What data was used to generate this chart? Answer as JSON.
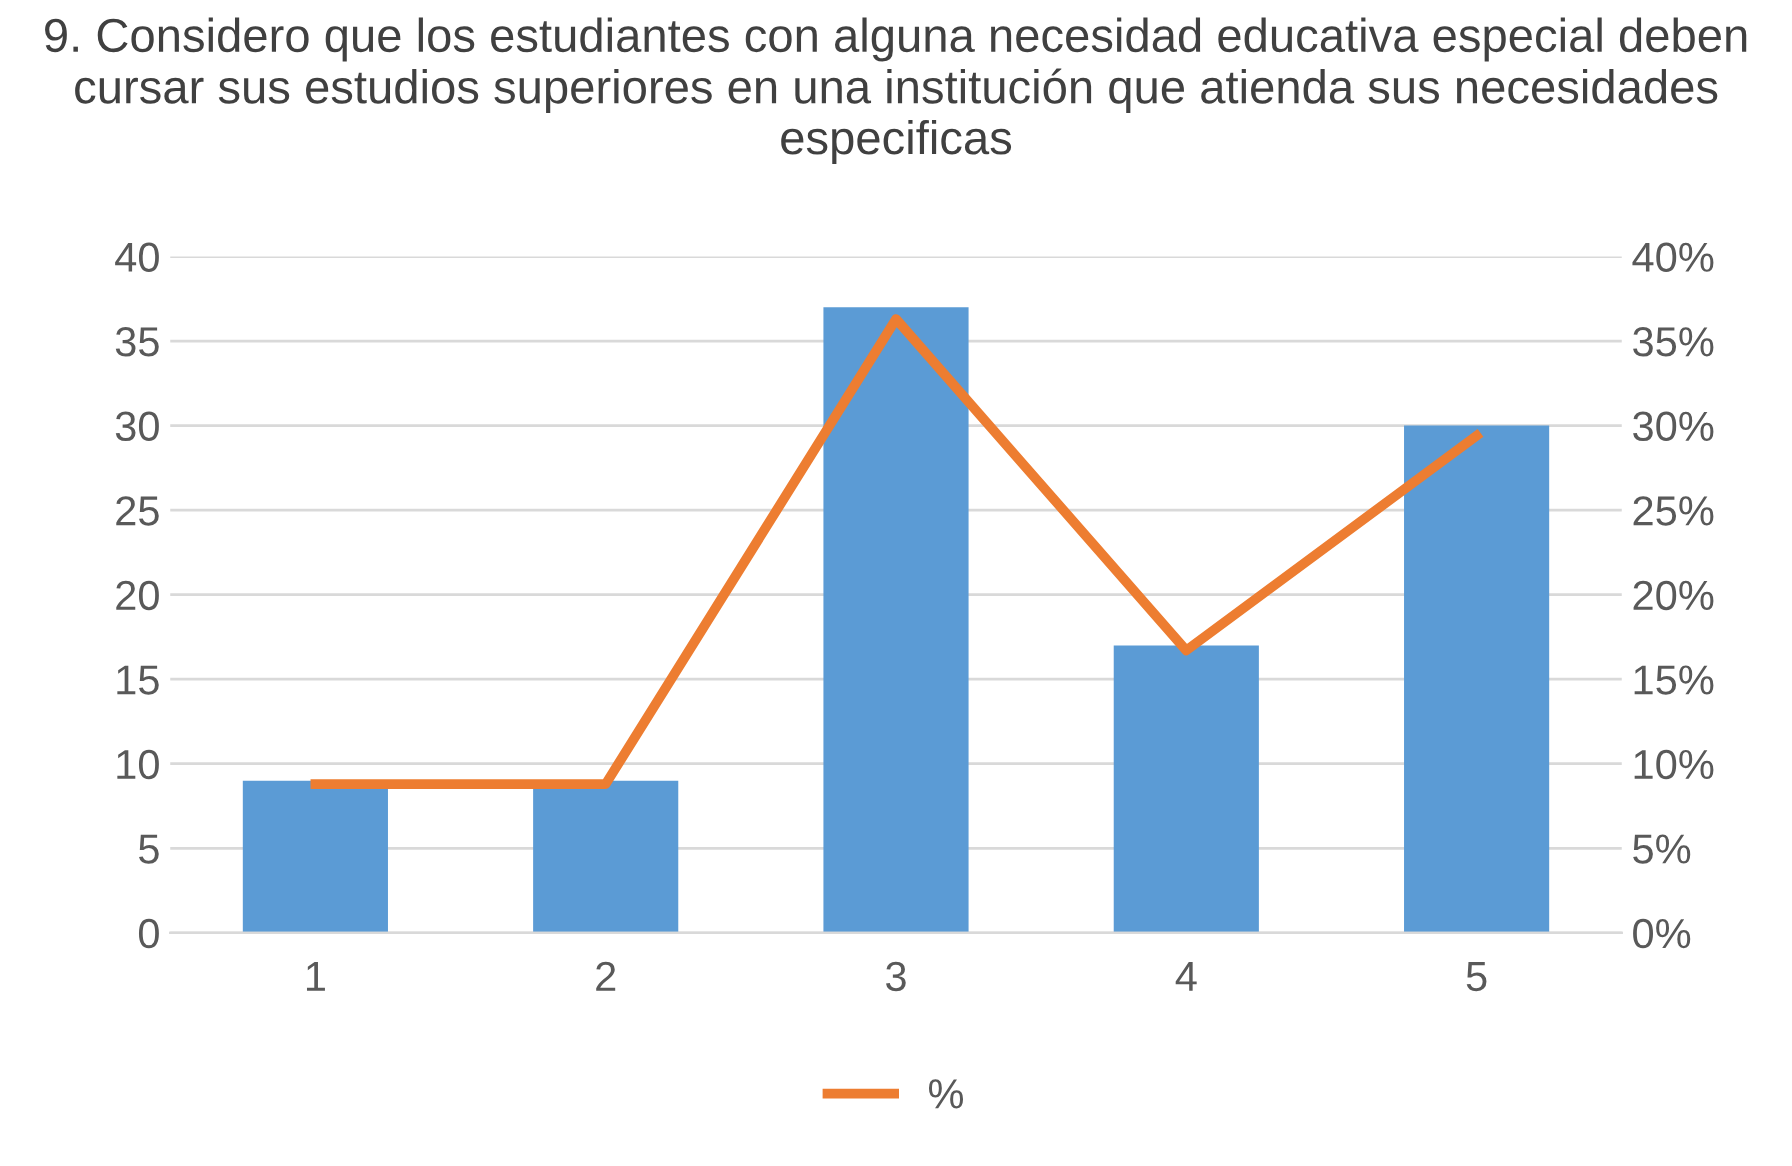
{
  "chart_data": {
    "type": "bar",
    "title": "9. Considero que los estudiantes con alguna necesidad educativa especial deben cursar sus estudios superiores en una institución que atienda sus necesidades especificas",
    "categories": [
      "1",
      "2",
      "3",
      "4",
      "5"
    ],
    "series": [
      {
        "color": "#5b9bd5",
        "values": [
          9,
          9,
          37,
          17,
          30
        ]
      },
      {
        "type": "line",
        "name": "%",
        "axis": "y2",
        "color": "#ed7d31",
        "values": [
          8.8,
          8.8,
          36.3,
          16.7,
          29.4
        ]
      }
    ],
    "ylim": [
      0,
      40
    ],
    "yticks": [
      0,
      5,
      10,
      15,
      20,
      25,
      30,
      35,
      40
    ],
    "y2lim": [
      0,
      40
    ],
    "y2ticks": [
      {
        "value": 0,
        "label": "0%"
      },
      {
        "value": 5,
        "label": "5%"
      },
      {
        "value": 10,
        "label": "10%"
      },
      {
        "value": 15,
        "label": "15%"
      },
      {
        "value": 20,
        "label": "20%"
      },
      {
        "value": 25,
        "label": "25%"
      },
      {
        "value": 30,
        "label": "30%"
      },
      {
        "value": 35,
        "label": "35%"
      },
      {
        "value": 40,
        "label": "40%"
      }
    ],
    "grid": "y",
    "legend": "bottom",
    "marker": "none"
  }
}
